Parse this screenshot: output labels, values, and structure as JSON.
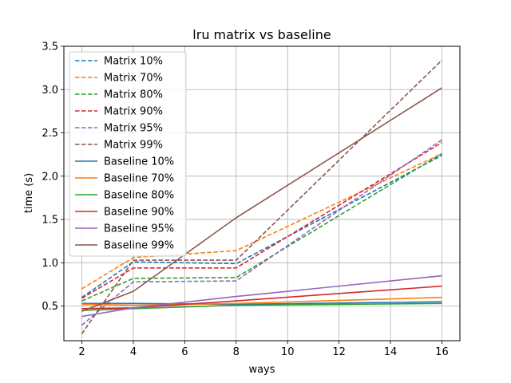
{
  "chart_data": {
    "type": "line",
    "title": "lru matrix vs baseline",
    "xlabel": "ways",
    "ylabel": "time (s)",
    "xlim": [
      1.3,
      16.7
    ],
    "ylim": [
      0.1,
      3.5
    ],
    "xticks": [
      2,
      4,
      6,
      8,
      10,
      12,
      14,
      16
    ],
    "yticks": [
      0.5,
      1.0,
      1.5,
      2.0,
      2.5,
      3.0,
      3.5
    ],
    "xtick_labels": [
      "2",
      "4",
      "6",
      "8",
      "10",
      "12",
      "14",
      "16"
    ],
    "ytick_labels": [
      "0.5",
      "1.0",
      "1.5",
      "2.0",
      "2.5",
      "3.0",
      "3.5"
    ],
    "grid": true,
    "legend_position": "top-left",
    "x": [
      2,
      4,
      8,
      16
    ],
    "series": [
      {
        "name": "Matrix 10%",
        "values": [
          0.6,
          1.01,
          0.99,
          2.24
        ],
        "color": "#1f77b4",
        "dash": true
      },
      {
        "name": "Matrix 70%",
        "values": [
          0.7,
          1.06,
          1.14,
          2.26
        ],
        "color": "#ff7f0e",
        "dash": true
      },
      {
        "name": "Matrix 80%",
        "values": [
          0.56,
          0.82,
          0.83,
          2.26
        ],
        "color": "#2ca02c",
        "dash": true
      },
      {
        "name": "Matrix 90%",
        "values": [
          0.59,
          0.94,
          0.94,
          2.39
        ],
        "color": "#d62728",
        "dash": true
      },
      {
        "name": "Matrix 95%",
        "values": [
          0.28,
          0.78,
          0.79,
          2.42
        ],
        "color": "#9467bd",
        "dash": true
      },
      {
        "name": "Matrix 99%",
        "values": [
          0.18,
          1.03,
          1.03,
          3.34
        ],
        "color": "#8c564b",
        "dash": true
      },
      {
        "name": "Baseline 10%",
        "values": [
          0.53,
          0.53,
          0.52,
          0.55
        ],
        "color": "#1f77b4",
        "dash": false
      },
      {
        "name": "Baseline 70%",
        "values": [
          0.52,
          0.51,
          0.53,
          0.6
        ],
        "color": "#ff7f0e",
        "dash": false
      },
      {
        "name": "Baseline 80%",
        "values": [
          0.45,
          0.47,
          0.51,
          0.53
        ],
        "color": "#2ca02c",
        "dash": false
      },
      {
        "name": "Baseline 90%",
        "values": [
          0.47,
          0.48,
          0.56,
          0.73
        ],
        "color": "#d62728",
        "dash": false
      },
      {
        "name": "Baseline 95%",
        "values": [
          0.38,
          0.48,
          0.61,
          0.85
        ],
        "color": "#9467bd",
        "dash": false
      },
      {
        "name": "Baseline 99%",
        "values": [
          0.44,
          0.67,
          1.52,
          3.02
        ],
        "color": "#8c564b",
        "dash": false
      }
    ]
  }
}
